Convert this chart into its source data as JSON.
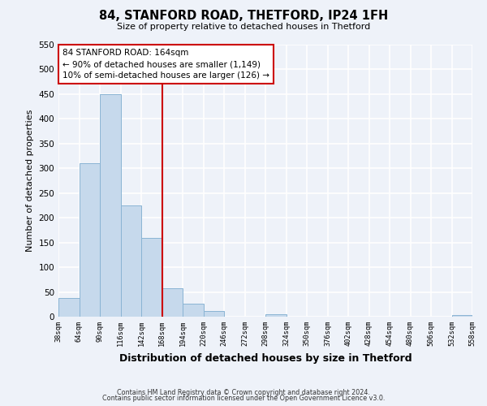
{
  "title": "84, STANFORD ROAD, THETFORD, IP24 1FH",
  "subtitle": "Size of property relative to detached houses in Thetford",
  "xlabel": "Distribution of detached houses by size in Thetford",
  "ylabel": "Number of detached properties",
  "bar_edges": [
    38,
    64,
    90,
    116,
    142,
    168,
    194,
    220,
    246,
    272,
    298,
    324,
    350,
    376,
    402,
    428,
    454,
    480,
    506,
    532,
    558
  ],
  "bar_heights": [
    37,
    310,
    450,
    225,
    160,
    57,
    26,
    12,
    0,
    0,
    5,
    0,
    0,
    0,
    0,
    0,
    0,
    0,
    0,
    3
  ],
  "bar_color": "#c6d9ec",
  "bar_edge_color": "#8ab4d4",
  "reference_line_x": 168,
  "reference_line_color": "#cc0000",
  "annotation_line1": "84 STANFORD ROAD: 164sqm",
  "annotation_line2": "← 90% of detached houses are smaller (1,149)",
  "annotation_line3": "10% of semi-detached houses are larger (126) →",
  "annotation_box_color": "white",
  "annotation_box_edge_color": "#cc0000",
  "ylim": [
    0,
    550
  ],
  "yticks": [
    0,
    50,
    100,
    150,
    200,
    250,
    300,
    350,
    400,
    450,
    500,
    550
  ],
  "tick_labels": [
    "38sqm",
    "64sqm",
    "90sqm",
    "116sqm",
    "142sqm",
    "168sqm",
    "194sqm",
    "220sqm",
    "246sqm",
    "272sqm",
    "298sqm",
    "324sqm",
    "350sqm",
    "376sqm",
    "402sqm",
    "428sqm",
    "454sqm",
    "480sqm",
    "506sqm",
    "532sqm",
    "558sqm"
  ],
  "footer_line1": "Contains HM Land Registry data © Crown copyright and database right 2024.",
  "footer_line2": "Contains public sector information licensed under the Open Government Licence v3.0.",
  "background_color": "#eef2f9",
  "grid_color": "#ffffff"
}
